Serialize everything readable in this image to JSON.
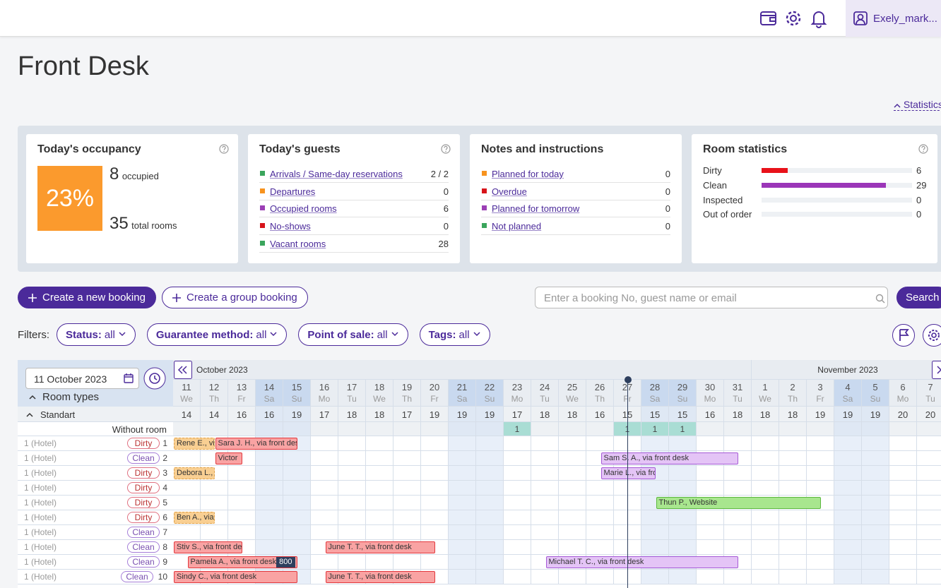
{
  "header": {
    "user": "Exely_mark..."
  },
  "page": {
    "title": "Front Desk",
    "statistics_toggle": "Statistics"
  },
  "occupancy": {
    "title": "Today's occupancy",
    "percent": "23%",
    "occupied": 8,
    "occupied_label": "occupied",
    "total": 35,
    "total_label": "total rooms",
    "color": "#fb9a2d"
  },
  "guests": {
    "title": "Today's guests",
    "rows": [
      {
        "label": "Arrivals / Same-day reservations",
        "value": "2 / 2",
        "color": "#3aa55c"
      },
      {
        "label": "Departures",
        "value": 0,
        "color": "#f7931e"
      },
      {
        "label": "Occupied rooms",
        "value": 6,
        "color": "#9b3fb5"
      },
      {
        "label": "No-shows",
        "value": 0,
        "color": "#d7141a"
      },
      {
        "label": "Vacant rooms",
        "value": 28,
        "color": "#3aa55c"
      }
    ]
  },
  "notes": {
    "title": "Notes and instructions",
    "rows": [
      {
        "label": "Planned for today",
        "value": 0,
        "color": "#f7931e"
      },
      {
        "label": "Overdue",
        "value": 0,
        "color": "#d7141a"
      },
      {
        "label": "Planned for tomorrow",
        "value": 0,
        "color": "#9b3fb5"
      },
      {
        "label": "Not planned",
        "value": 0,
        "color": "#3aa55c"
      }
    ]
  },
  "room_statistics": {
    "title": "Room statistics",
    "rows": [
      {
        "label": "Dirty",
        "value": 6,
        "color": "#e8121a"
      },
      {
        "label": "Clean",
        "value": 29,
        "color": "#9b36b8"
      },
      {
        "label": "Inspected",
        "value": 0,
        "color": "#3aa55c"
      },
      {
        "label": "Out of order",
        "value": 0,
        "color": "#888888"
      }
    ]
  },
  "actions": {
    "new_booking": "Create a new booking",
    "group_booking": "Create a group booking",
    "search_placeholder": "Enter a booking No, guest name or email",
    "search": "Search"
  },
  "filters": {
    "label": "Filters:",
    "items": [
      {
        "name": "Status:",
        "value": "all"
      },
      {
        "name": "Guarantee method:",
        "value": "all"
      },
      {
        "name": "Point of sale:",
        "value": "all"
      },
      {
        "name": "Tags:",
        "value": "all"
      }
    ]
  },
  "calendar": {
    "date": "11 October 2023",
    "room_types": "Room types",
    "months": [
      "October 2023",
      "November 2023"
    ],
    "days": [
      11,
      12,
      13,
      14,
      15,
      16,
      17,
      18,
      19,
      20,
      21,
      22,
      23,
      24,
      25,
      26,
      27,
      28,
      29,
      30,
      31,
      1,
      2,
      3,
      4,
      5,
      6,
      7
    ],
    "weekdays": [
      "We",
      "Th",
      "Fr",
      "Sa",
      "Su",
      "Mo",
      "Tu",
      "We",
      "Th",
      "Fr",
      "Sa",
      "Su",
      "Mo",
      "Tu",
      "We",
      "Th",
      "Fr",
      "Sa",
      "Su",
      "Mo",
      "Tu",
      "We",
      "Th",
      "Fr",
      "Sa",
      "Su",
      "Mo",
      "Tu"
    ],
    "group": "Standart",
    "availability": [
      14,
      14,
      16,
      16,
      19,
      17,
      18,
      18,
      17,
      19,
      19,
      19,
      17,
      18,
      18,
      16,
      15,
      15,
      15,
      16,
      18,
      18,
      18,
      19,
      19,
      19,
      20,
      20
    ],
    "without_room_label": "Without room",
    "without_room": [
      null,
      null,
      null,
      null,
      null,
      null,
      null,
      null,
      null,
      null,
      null,
      null,
      1,
      null,
      null,
      null,
      1,
      1,
      1,
      null,
      null,
      null,
      null,
      null,
      null,
      null,
      null,
      null
    ],
    "rooms": [
      {
        "type": "1 (Hotel)",
        "status": "Dirty",
        "number": 1,
        "bookings": [
          {
            "label": "Rene E., via front desk",
            "color": "#f9cf92"
          },
          {
            "label": "Sara J. H., via front desk",
            "color": "#f9a3a3"
          }
        ]
      },
      {
        "type": "1 (Hotel)",
        "status": "Clean",
        "number": 2,
        "bookings": [
          {
            "label": "Victor",
            "color": "#f9a3a3"
          },
          {
            "label": "Sam S. A., via front desk",
            "color": "#e4c4f6"
          }
        ]
      },
      {
        "type": "1 (Hotel)",
        "status": "Dirty",
        "number": 3,
        "bookings": [
          {
            "label": "Debora L., via front desk",
            "color": "#f9cf92"
          },
          {
            "label": "Marie L., via front desk",
            "color": "#e4c4f6"
          }
        ]
      },
      {
        "type": "1 (Hotel)",
        "status": "Dirty",
        "number": 4,
        "bookings": []
      },
      {
        "type": "1 (Hotel)",
        "status": "Dirty",
        "number": 5,
        "bookings": [
          {
            "label": "Thun P., Website",
            "color": "#a8e68e"
          }
        ]
      },
      {
        "type": "1 (Hotel)",
        "status": "Dirty",
        "number": 6,
        "bookings": [
          {
            "label": "Ben A., via front desk",
            "color": "#f9cf92"
          }
        ]
      },
      {
        "type": "1 (Hotel)",
        "status": "Clean",
        "number": 7,
        "bookings": []
      },
      {
        "type": "1 (Hotel)",
        "status": "Clean",
        "number": 8,
        "bookings": [
          {
            "label": "Stiv S., via front desk",
            "color": "#f9a3a3"
          },
          {
            "label": "June T. T., via front desk",
            "color": "#f9a3a3"
          }
        ]
      },
      {
        "type": "1 (Hotel)",
        "status": "Clean",
        "number": 9,
        "bookings": [
          {
            "label": "Pamela A., via front desk",
            "color": "#f9a3a3",
            "badge": "800"
          },
          {
            "label": "Michael T. C., via front desk",
            "color": "#e4c4f6"
          }
        ]
      },
      {
        "type": "1 (Hotel)",
        "status": "Clean",
        "number": 10,
        "bookings": [
          {
            "label": "Sindy C., via front desk",
            "color": "#f9a3a3"
          },
          {
            "label": "June T. T., via front desk",
            "color": "#f9a3a3"
          }
        ]
      }
    ]
  }
}
